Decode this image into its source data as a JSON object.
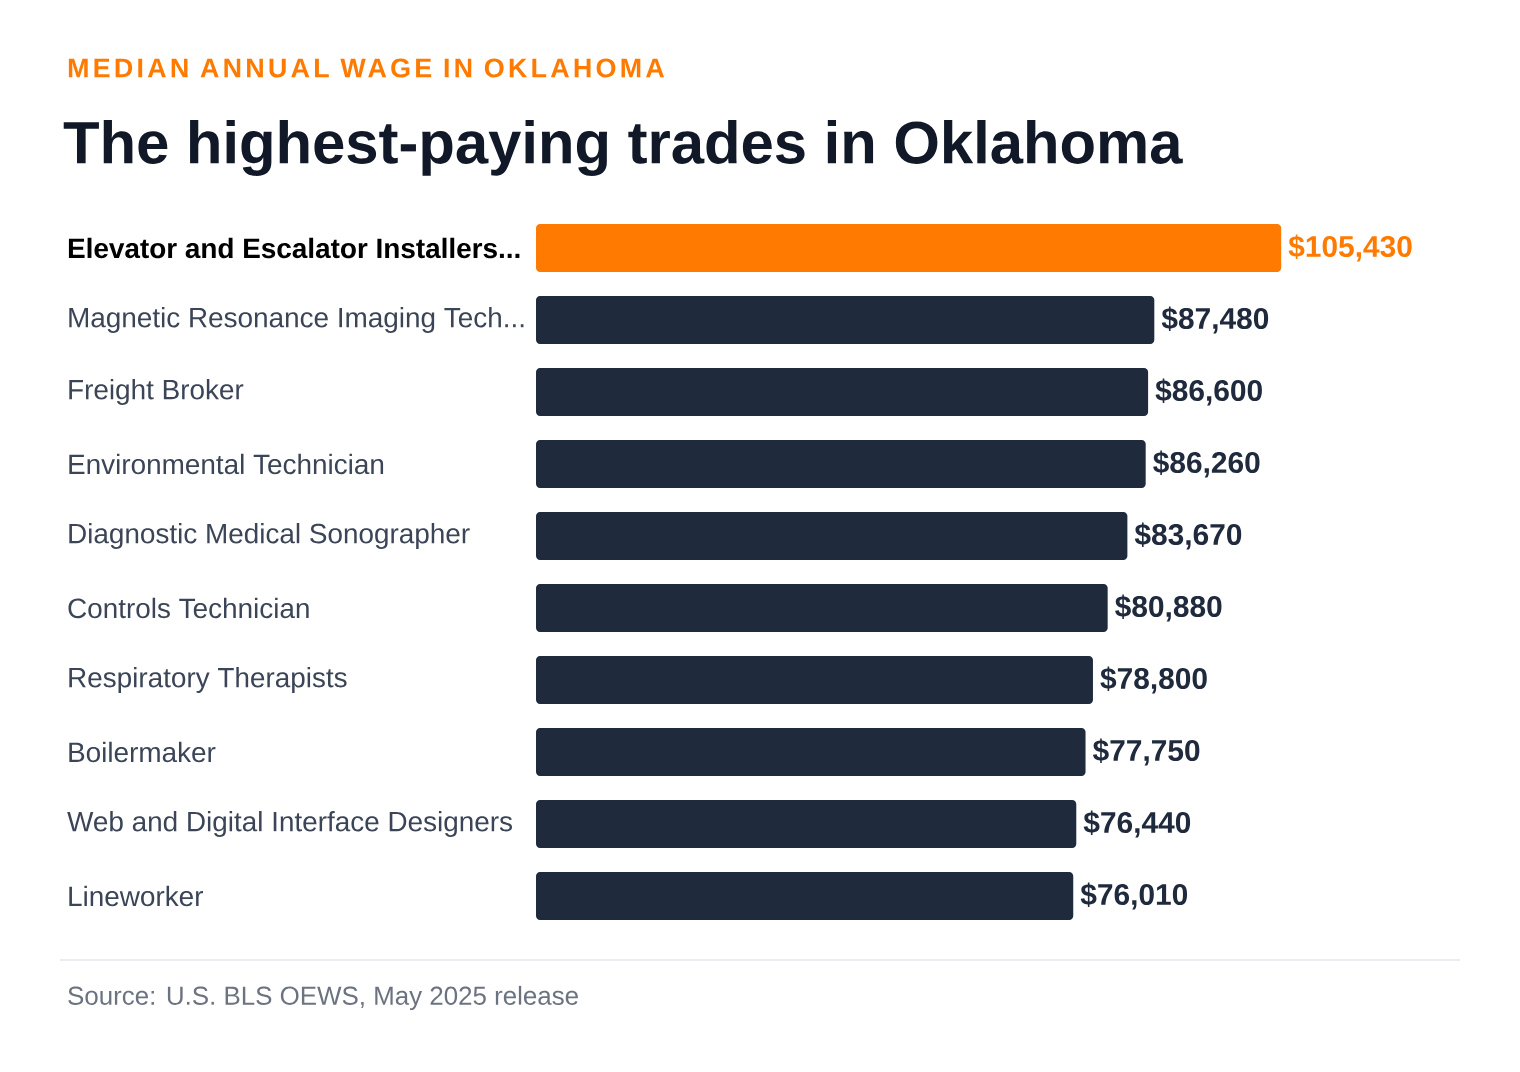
{
  "chart_data": {
    "type": "bar",
    "orientation": "horizontal",
    "subtitle": "MEDIAN ANNUAL WAGE IN OKLAHOMA",
    "title": "The highest-paying trades in Oklahoma",
    "categories": [
      "Elevator and Escalator Installers...",
      "Magnetic Resonance Imaging Tech...",
      "Freight Broker",
      "Environmental Technician",
      "Diagnostic Medical Sonographer",
      "Controls Technician",
      "Respiratory Therapists",
      "Boilermaker",
      "Web and Digital Interface Designers",
      "Lineworker"
    ],
    "values": [
      105430,
      87480,
      86600,
      86260,
      83670,
      80880,
      78800,
      77750,
      76440,
      76010
    ],
    "colors": [
      "#ff7a00",
      "#1f2a3d",
      "#1f2a3d",
      "#1f2a3d",
      "#1f2a3d",
      "#1f2a3d",
      "#1f2a3d",
      "#1f2a3d",
      "#1f2a3d",
      "#1f2a3d"
    ],
    "value_labels": [
      "$105,430",
      "$87,480",
      "$86,600",
      "$86,260",
      "$83,670",
      "$80,880",
      "$78,800",
      "$77,750",
      "$76,440",
      "$76,010"
    ],
    "annotations": [
      "Source: U.S. BLS OEWS, May 2025 release"
    ]
  }
}
